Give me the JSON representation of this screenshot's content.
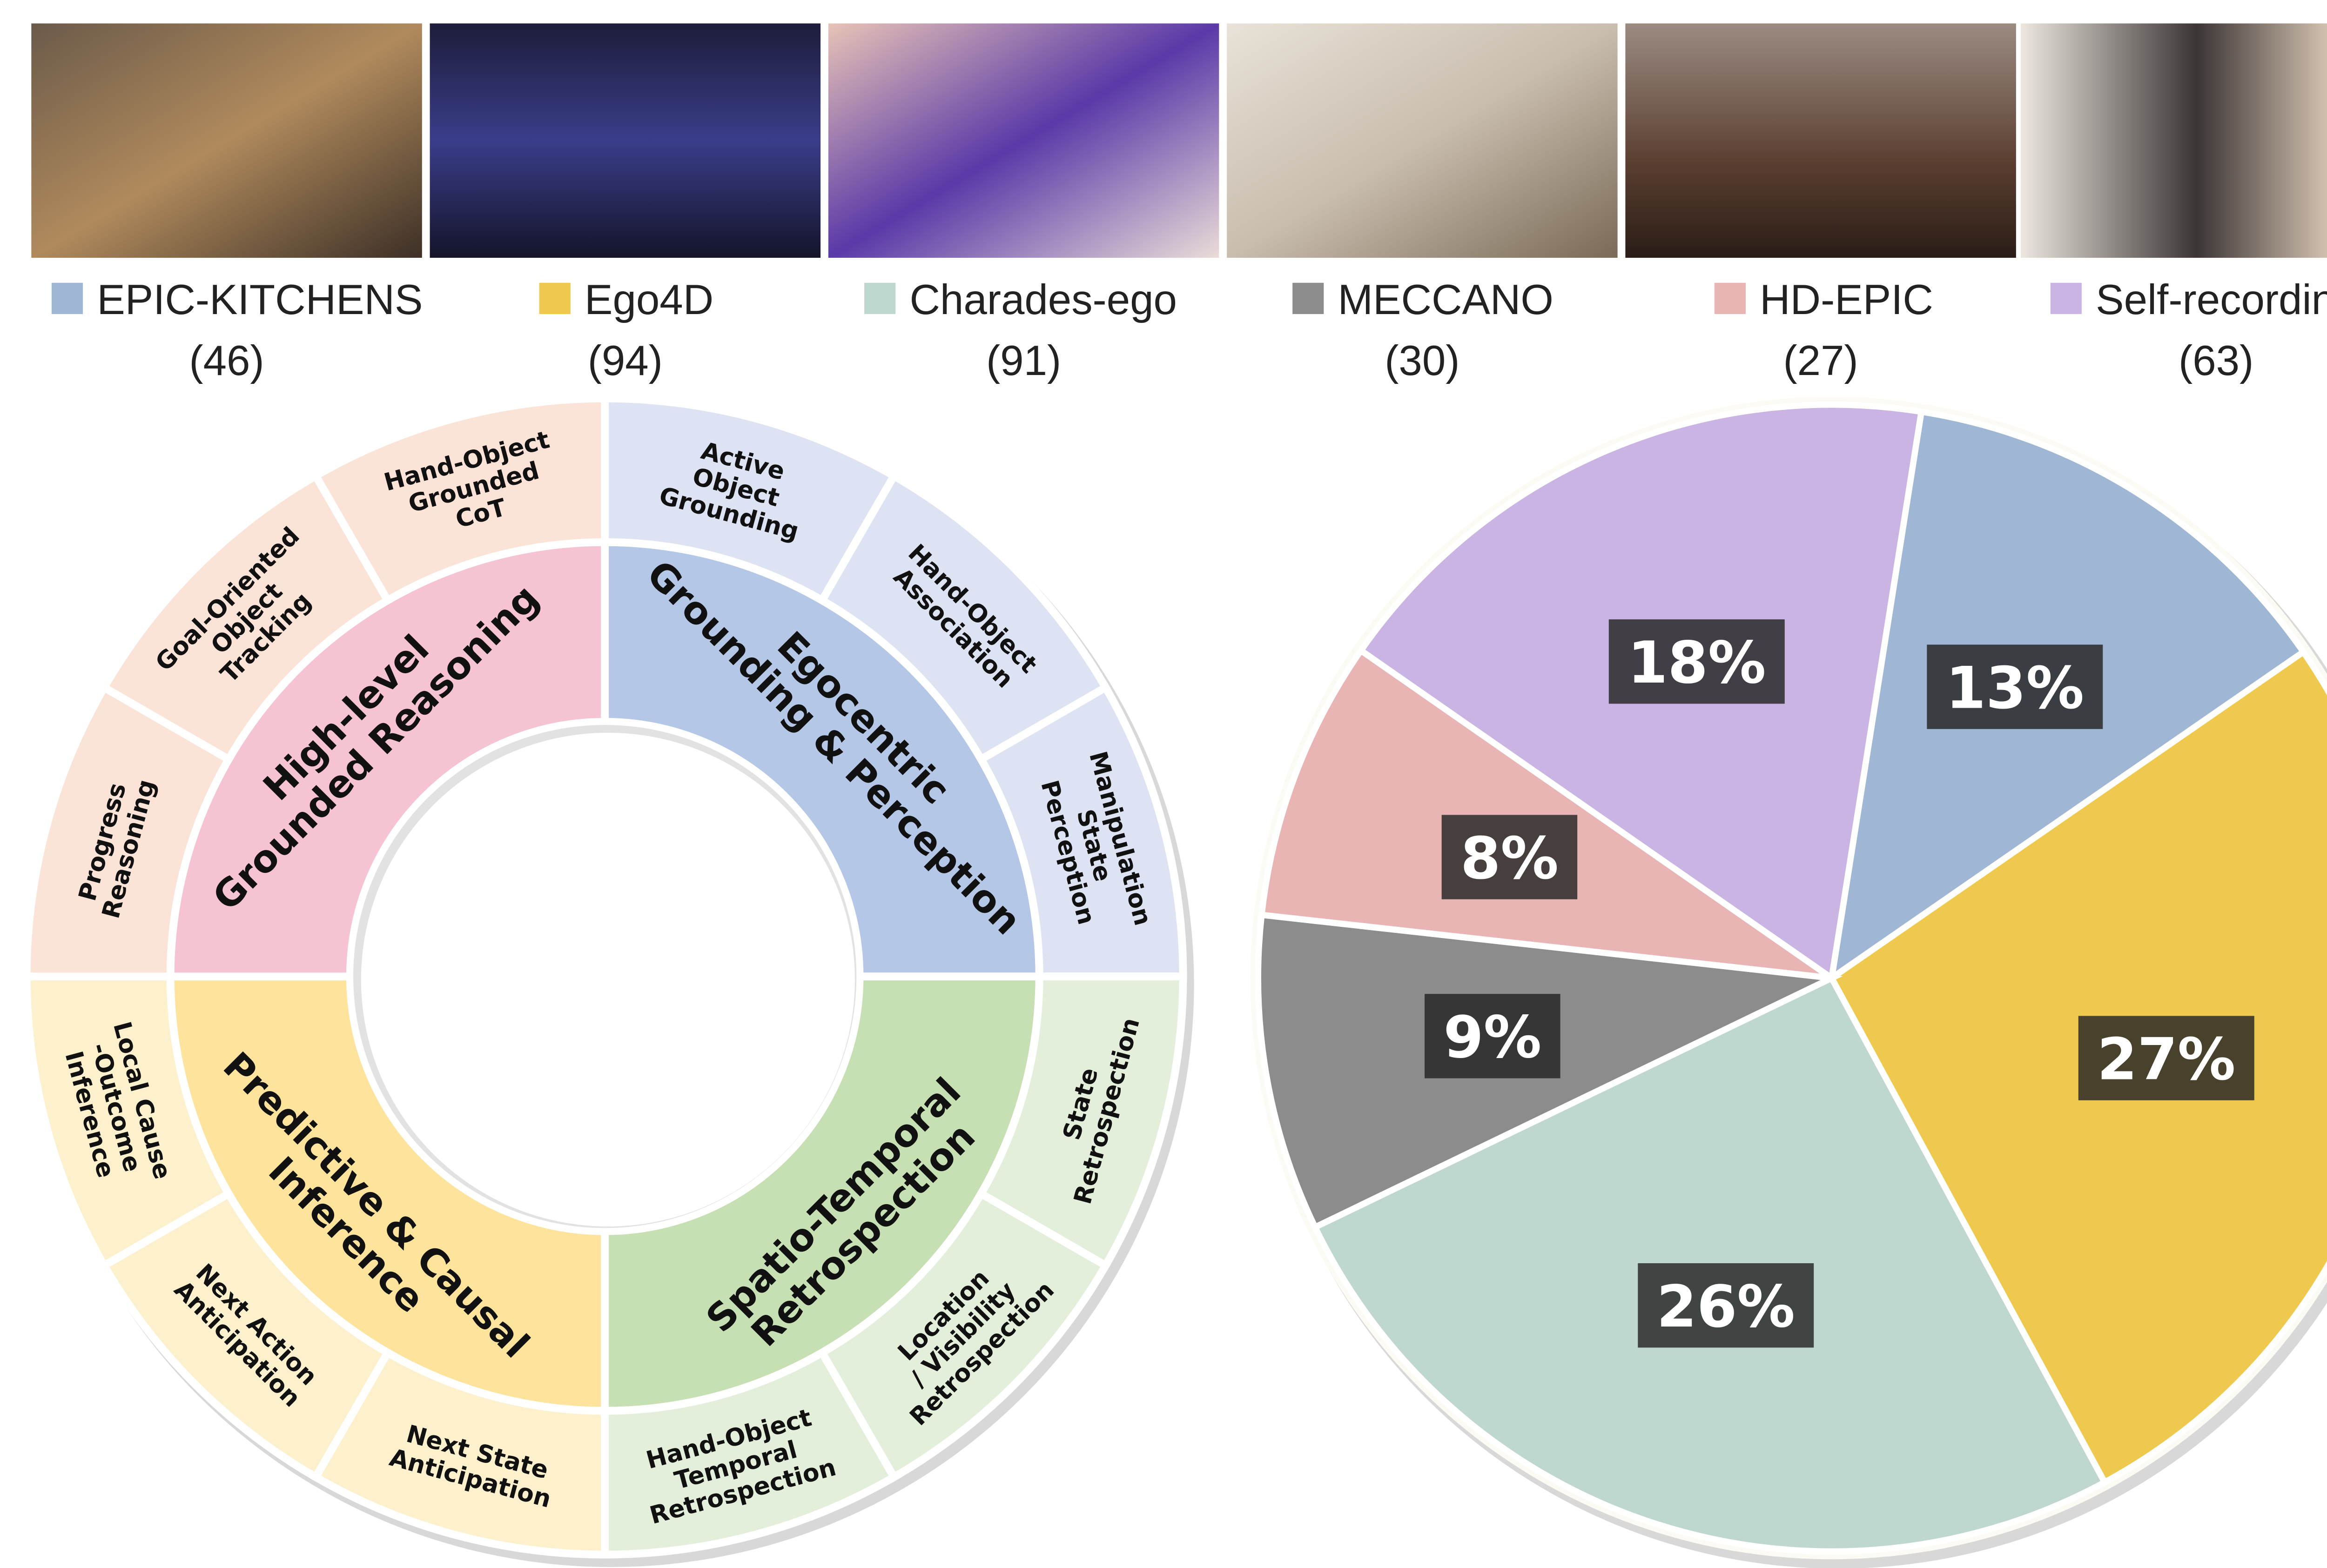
{
  "photos": {
    "count": 6
  },
  "chart_data": {
    "type": "pie",
    "categories": [
      "EPIC-KITCHENS",
      "Ego4D",
      "Charades-ego",
      "MECCANO",
      "HD-EPIC",
      "Self-recording"
    ],
    "counts": [
      46,
      94,
      91,
      30,
      27,
      63
    ],
    "count_labels": [
      "(46)",
      "(94)",
      "(91)",
      "(30)",
      "(27)",
      "(63)"
    ],
    "values": [
      13,
      27,
      26,
      9,
      8,
      18
    ],
    "value_labels": [
      "13%",
      "27%",
      "26%",
      "9%",
      "8%",
      "18%"
    ],
    "colors": [
      "#9fb6d4",
      "#efc84e",
      "#bfd8cf",
      "#8c8c8c",
      "#e8b5b4",
      "#c9b4e3"
    ]
  },
  "taxonomy": {
    "categories": [
      {
        "lines": [
          "Egocentric",
          "Grounding & Perception"
        ],
        "color": "#b4c7e7",
        "light": "#dde3f3",
        "subtasks": [
          {
            "lines": [
              "Active",
              "Object",
              "Grounding"
            ]
          },
          {
            "lines": [
              "Hand-Object",
              "Association"
            ]
          },
          {
            "lines": [
              "Manipulation",
              "State",
              "Perception"
            ]
          }
        ]
      },
      {
        "lines": [
          "Spatio-Temporal",
          "Retrospection"
        ],
        "color": "#c6e0b4",
        "light": "#e3efda",
        "subtasks": [
          {
            "lines": [
              "State",
              "Retrospection"
            ]
          },
          {
            "lines": [
              "Location",
              "/ Visibility",
              "Retrospection"
            ]
          },
          {
            "lines": [
              "Hand-Object",
              "Temporal",
              "Retrospection"
            ]
          }
        ]
      },
      {
        "lines": [
          "Predictive & Causal",
          "Inference"
        ],
        "color": "#fde39b",
        "light": "#fdf1cd",
        "subtasks": [
          {
            "lines": [
              "Next State",
              "Anticipation"
            ]
          },
          {
            "lines": [
              "Next Action",
              "Anticipation"
            ]
          },
          {
            "lines": [
              "Local Cause",
              "-Outcome",
              "Inference"
            ]
          }
        ]
      },
      {
        "lines": [
          "High-level",
          "Grounded Reasoning"
        ],
        "color": "#f5c3d1",
        "light": "#fbe3d7",
        "subtasks": [
          {
            "lines": [
              "Progress",
              "Reasoning"
            ]
          },
          {
            "lines": [
              "Goal-Oriented",
              "Object",
              "Tracking"
            ]
          },
          {
            "lines": [
              "Hand-Object",
              "Grounded",
              "CoT"
            ]
          }
        ]
      }
    ]
  }
}
